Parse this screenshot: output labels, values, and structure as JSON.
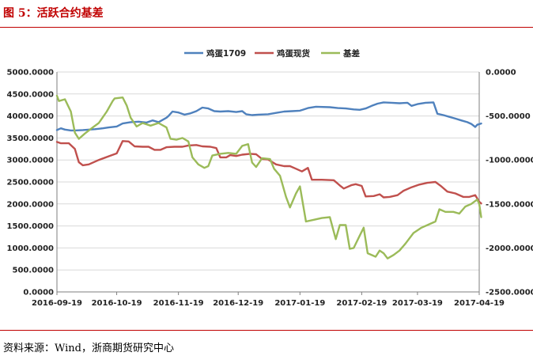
{
  "header": {
    "title": "图 5：活跃合约基差"
  },
  "footer": {
    "source": "资料来源：Wind，浙商期货研究中心"
  },
  "colors": {
    "accent": "#c00000",
    "series": [
      "#4f81bd",
      "#c0504d",
      "#9bbb59"
    ]
  },
  "chart_data": {
    "type": "line",
    "title": "",
    "xlabel": "",
    "ylabel_left": "",
    "ylabel_right": "",
    "legend_position": "top-center",
    "grid": true,
    "ylim_left": [
      0,
      5000
    ],
    "ylim_right": [
      -2500,
      0
    ],
    "yticks_left": [
      "0.0000",
      "500.0000",
      "1000.0000",
      "1500.0000",
      "2000.0000",
      "2500.0000",
      "3000.0000",
      "3500.0000",
      "4000.0000",
      "4500.0000",
      "5000.0000"
    ],
    "yticks_right": [
      "0.0000",
      "-500.0000",
      "-1000.0000",
      "-1500.0000",
      "-2000.0000",
      "-2500.0000"
    ],
    "xlim": [
      "2016-09-19",
      "2017-04-19"
    ],
    "xticks": [
      "2016-09-19",
      "2016-10-19",
      "2016-11-19",
      "2016-12-19",
      "2017-01-19",
      "2017-02-19",
      "2017-03-19",
      "2017-04-19"
    ],
    "series": [
      {
        "name": "鸡蛋1709",
        "axis": "left",
        "color": "#4f81bd",
        "points": [
          [
            "2016-09-19",
            3680
          ],
          [
            "2016-09-21",
            3720
          ],
          [
            "2016-09-23",
            3690
          ],
          [
            "2016-09-26",
            3670
          ],
          [
            "2016-09-28",
            3670
          ],
          [
            "2016-10-02",
            3680
          ],
          [
            "2016-10-08",
            3700
          ],
          [
            "2016-10-12",
            3720
          ],
          [
            "2016-10-15",
            3740
          ],
          [
            "2016-10-19",
            3760
          ],
          [
            "2016-10-22",
            3830
          ],
          [
            "2016-10-26",
            3860
          ],
          [
            "2016-10-30",
            3870
          ],
          [
            "2016-11-03",
            3850
          ],
          [
            "2016-11-06",
            3900
          ],
          [
            "2016-11-09",
            3860
          ],
          [
            "2016-11-13",
            3960
          ],
          [
            "2016-11-14",
            4000
          ],
          [
            "2016-11-16",
            4100
          ],
          [
            "2016-11-19",
            4080
          ],
          [
            "2016-11-22",
            4030
          ],
          [
            "2016-11-25",
            4060
          ],
          [
            "2016-11-28",
            4110
          ],
          [
            "2016-12-01",
            4190
          ],
          [
            "2016-12-04",
            4170
          ],
          [
            "2016-12-07",
            4110
          ],
          [
            "2016-12-10",
            4100
          ],
          [
            "2016-12-14",
            4110
          ],
          [
            "2016-12-18",
            4090
          ],
          [
            "2016-12-21",
            4110
          ],
          [
            "2016-12-23",
            4040
          ],
          [
            "2016-12-26",
            4020
          ],
          [
            "2016-12-29",
            4030
          ],
          [
            "2017-01-03",
            4040
          ],
          [
            "2017-01-07",
            4070
          ],
          [
            "2017-01-11",
            4100
          ],
          [
            "2017-01-15",
            4110
          ],
          [
            "2017-01-19",
            4120
          ],
          [
            "2017-01-23",
            4180
          ],
          [
            "2017-01-27",
            4210
          ],
          [
            "2017-02-03",
            4200
          ],
          [
            "2017-02-07",
            4180
          ],
          [
            "2017-02-11",
            4170
          ],
          [
            "2017-02-15",
            4150
          ],
          [
            "2017-02-18",
            4140
          ],
          [
            "2017-02-21",
            4170
          ],
          [
            "2017-02-24",
            4230
          ],
          [
            "2017-02-27",
            4280
          ],
          [
            "2017-03-02",
            4310
          ],
          [
            "2017-03-06",
            4300
          ],
          [
            "2017-03-10",
            4290
          ],
          [
            "2017-03-14",
            4300
          ],
          [
            "2017-03-16",
            4230
          ],
          [
            "2017-03-19",
            4270
          ],
          [
            "2017-03-23",
            4300
          ],
          [
            "2017-03-27",
            4310
          ],
          [
            "2017-03-29",
            4050
          ],
          [
            "2017-04-01",
            4020
          ],
          [
            "2017-04-04",
            3980
          ],
          [
            "2017-04-07",
            3940
          ],
          [
            "2017-04-10",
            3900
          ],
          [
            "2017-04-13",
            3860
          ],
          [
            "2017-04-15",
            3820
          ],
          [
            "2017-04-17",
            3750
          ],
          [
            "2017-04-18",
            3800
          ],
          [
            "2017-04-20",
            3830
          ]
        ]
      },
      {
        "name": "鸡蛋现货",
        "axis": "left",
        "color": "#c0504d",
        "points": [
          [
            "2016-09-19",
            3410
          ],
          [
            "2016-09-21",
            3380
          ],
          [
            "2016-09-25",
            3380
          ],
          [
            "2016-09-28",
            3250
          ],
          [
            "2016-09-30",
            2950
          ],
          [
            "2016-10-02",
            2880
          ],
          [
            "2016-10-05",
            2900
          ],
          [
            "2016-10-10",
            3000
          ],
          [
            "2016-10-16",
            3100
          ],
          [
            "2016-10-19",
            3150
          ],
          [
            "2016-10-22",
            3430
          ],
          [
            "2016-10-25",
            3420
          ],
          [
            "2016-10-28",
            3310
          ],
          [
            "2016-11-01",
            3300
          ],
          [
            "2016-11-04",
            3300
          ],
          [
            "2016-11-07",
            3230
          ],
          [
            "2016-11-10",
            3230
          ],
          [
            "2016-11-13",
            3290
          ],
          [
            "2016-11-17",
            3300
          ],
          [
            "2016-11-21",
            3300
          ],
          [
            "2016-11-24",
            3330
          ],
          [
            "2016-11-28",
            3340
          ],
          [
            "2016-12-01",
            3310
          ],
          [
            "2016-12-05",
            3300
          ],
          [
            "2016-12-08",
            3270
          ],
          [
            "2016-12-10",
            3060
          ],
          [
            "2016-12-13",
            3060
          ],
          [
            "2016-12-15",
            3110
          ],
          [
            "2016-12-18",
            3090
          ],
          [
            "2016-12-21",
            3120
          ],
          [
            "2016-12-25",
            3140
          ],
          [
            "2016-12-28",
            3130
          ],
          [
            "2016-12-31",
            3020
          ],
          [
            "2017-01-03",
            3010
          ],
          [
            "2017-01-07",
            2900
          ],
          [
            "2017-01-11",
            2860
          ],
          [
            "2017-01-14",
            2860
          ],
          [
            "2017-01-17",
            2800
          ],
          [
            "2017-01-20",
            2740
          ],
          [
            "2017-01-23",
            2820
          ],
          [
            "2017-01-25",
            2550
          ],
          [
            "2017-01-30",
            2550
          ],
          [
            "2017-02-05",
            2540
          ],
          [
            "2017-02-08",
            2420
          ],
          [
            "2017-02-10",
            2350
          ],
          [
            "2017-02-14",
            2430
          ],
          [
            "2017-02-16",
            2450
          ],
          [
            "2017-02-19",
            2410
          ],
          [
            "2017-02-21",
            2170
          ],
          [
            "2017-02-25",
            2180
          ],
          [
            "2017-02-28",
            2220
          ],
          [
            "2017-03-02",
            2150
          ],
          [
            "2017-03-05",
            2160
          ],
          [
            "2017-03-09",
            2200
          ],
          [
            "2017-03-12",
            2300
          ],
          [
            "2017-03-16",
            2380
          ],
          [
            "2017-03-20",
            2440
          ],
          [
            "2017-03-24",
            2480
          ],
          [
            "2017-03-28",
            2500
          ],
          [
            "2017-03-31",
            2400
          ],
          [
            "2017-04-03",
            2280
          ],
          [
            "2017-04-07",
            2240
          ],
          [
            "2017-04-11",
            2160
          ],
          [
            "2017-04-14",
            2160
          ],
          [
            "2017-04-17",
            2200
          ],
          [
            "2017-04-19",
            2050
          ],
          [
            "2017-04-20",
            2010
          ]
        ]
      },
      {
        "name": "基差",
        "axis": "right",
        "color": "#9bbb59",
        "points": [
          [
            "2016-09-19",
            -270
          ],
          [
            "2016-09-20",
            -330
          ],
          [
            "2016-09-23",
            -310
          ],
          [
            "2016-09-26",
            -450
          ],
          [
            "2016-09-28",
            -690
          ],
          [
            "2016-09-30",
            -760
          ],
          [
            "2016-10-03",
            -700
          ],
          [
            "2016-10-07",
            -630
          ],
          [
            "2016-10-10",
            -580
          ],
          [
            "2016-10-14",
            -450
          ],
          [
            "2016-10-17",
            -330
          ],
          [
            "2016-10-18",
            -300
          ],
          [
            "2016-10-22",
            -290
          ],
          [
            "2016-10-24",
            -380
          ],
          [
            "2016-10-26",
            -520
          ],
          [
            "2016-10-29",
            -620
          ],
          [
            "2016-11-01",
            -580
          ],
          [
            "2016-11-05",
            -610
          ],
          [
            "2016-11-09",
            -580
          ],
          [
            "2016-11-13",
            -630
          ],
          [
            "2016-11-15",
            -760
          ],
          [
            "2016-11-18",
            -770
          ],
          [
            "2016-11-21",
            -750
          ],
          [
            "2016-11-24",
            -790
          ],
          [
            "2016-11-26",
            -970
          ],
          [
            "2016-11-29",
            -1050
          ],
          [
            "2016-12-02",
            -1090
          ],
          [
            "2016-12-04",
            -1070
          ],
          [
            "2016-12-06",
            -950
          ],
          [
            "2016-12-10",
            -930
          ],
          [
            "2016-12-14",
            -920
          ],
          [
            "2016-12-18",
            -930
          ],
          [
            "2016-12-21",
            -840
          ],
          [
            "2016-12-24",
            -820
          ],
          [
            "2016-12-26",
            -1030
          ],
          [
            "2016-12-28",
            -1080
          ],
          [
            "2016-12-31",
            -980
          ],
          [
            "2017-01-04",
            -990
          ],
          [
            "2017-01-06",
            -1100
          ],
          [
            "2017-01-09",
            -1180
          ],
          [
            "2017-01-12",
            -1420
          ],
          [
            "2017-01-14",
            -1540
          ],
          [
            "2017-01-17",
            -1380
          ],
          [
            "2017-01-19",
            -1300
          ],
          [
            "2017-01-22",
            -1700
          ],
          [
            "2017-01-26",
            -1680
          ],
          [
            "2017-01-30",
            -1660
          ],
          [
            "2017-02-03",
            -1650
          ],
          [
            "2017-02-06",
            -1900
          ],
          [
            "2017-02-08",
            -1740
          ],
          [
            "2017-02-11",
            -1740
          ],
          [
            "2017-02-13",
            -2010
          ],
          [
            "2017-02-15",
            -2000
          ],
          [
            "2017-02-18",
            -1860
          ],
          [
            "2017-02-20",
            -1770
          ],
          [
            "2017-02-22",
            -2060
          ],
          [
            "2017-02-26",
            -2100
          ],
          [
            "2017-02-28",
            -2030
          ],
          [
            "2017-03-02",
            -2060
          ],
          [
            "2017-03-04",
            -2120
          ],
          [
            "2017-03-07",
            -2080
          ],
          [
            "2017-03-10",
            -2030
          ],
          [
            "2017-03-13",
            -1950
          ],
          [
            "2017-03-17",
            -1830
          ],
          [
            "2017-03-21",
            -1770
          ],
          [
            "2017-03-25",
            -1730
          ],
          [
            "2017-03-28",
            -1700
          ],
          [
            "2017-03-30",
            -1560
          ],
          [
            "2017-04-02",
            -1590
          ],
          [
            "2017-04-06",
            -1590
          ],
          [
            "2017-04-09",
            -1610
          ],
          [
            "2017-04-12",
            -1530
          ],
          [
            "2017-04-15",
            -1500
          ],
          [
            "2017-04-18",
            -1450
          ],
          [
            "2017-04-19",
            -1500
          ],
          [
            "2017-04-20",
            -1650
          ]
        ]
      }
    ]
  }
}
